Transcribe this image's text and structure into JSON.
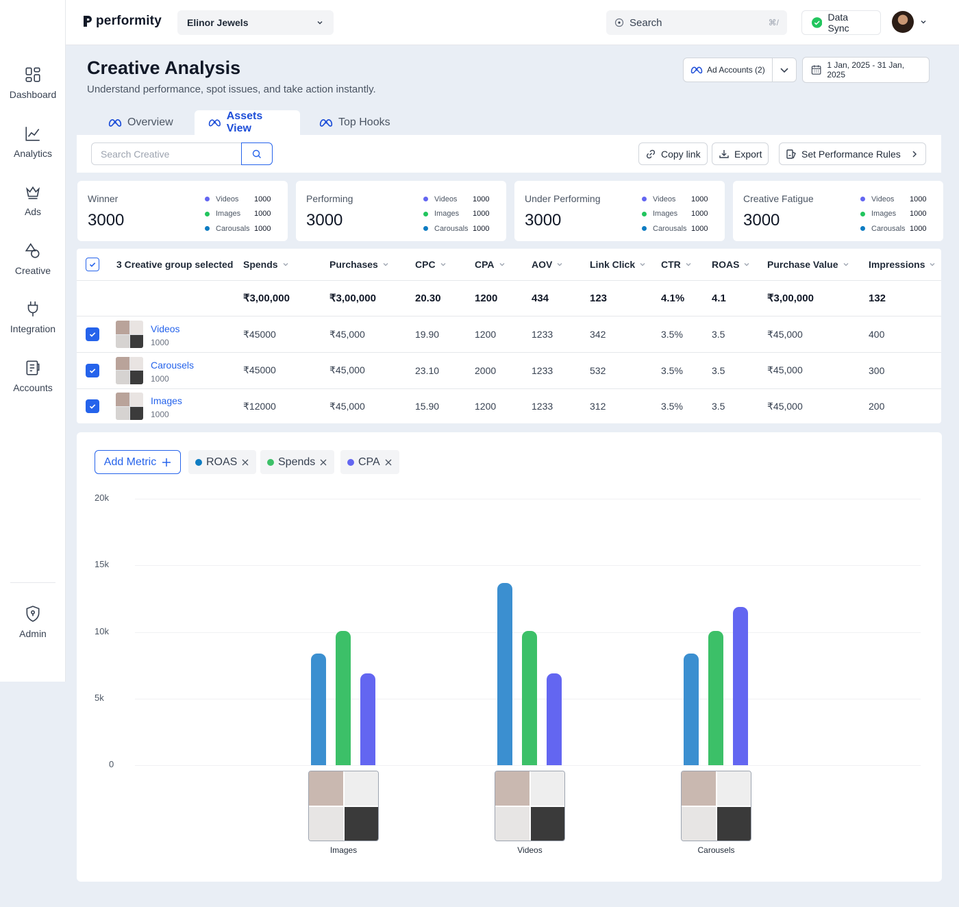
{
  "brand": {
    "logo_text": "performity"
  },
  "sidebar": {
    "items": [
      {
        "label": "Dashboard",
        "icon": "dashboard-icon"
      },
      {
        "label": "Analytics",
        "icon": "analytics-icon"
      },
      {
        "label": "Ads",
        "icon": "crown-icon"
      },
      {
        "label": "Creative",
        "icon": "shapes-icon"
      },
      {
        "label": "Integration",
        "icon": "plug-icon"
      },
      {
        "label": "Accounts",
        "icon": "accounts-icon"
      }
    ],
    "admin": {
      "label": "Admin",
      "icon": "shield-icon"
    }
  },
  "header": {
    "account_select": "Elinor Jewels",
    "search_placeholder": "Search",
    "search_shortcut": "⌘/",
    "sync_label": "Data Sync"
  },
  "page": {
    "title": "Creative Analysis",
    "subtitle": "Understand performance, spot issues, and take action instantly.",
    "ad_accounts": "Ad Accounts (2)",
    "date_range": "1 Jan, 2025 - 31 Jan, 2025"
  },
  "tabs": [
    {
      "label": "Overview",
      "active": false
    },
    {
      "label": "Assets View",
      "active": true
    },
    {
      "label": "Top Hooks",
      "active": false
    }
  ],
  "toolbar": {
    "search_placeholder": "Search Creative",
    "copy_link": "Copy link",
    "export": "Export",
    "rules": "Set Performance Rules"
  },
  "cards": [
    {
      "title": "Winner",
      "value": "3000",
      "breakdown": [
        {
          "name": "Videos",
          "value": "1000"
        },
        {
          "name": "Images",
          "value": "1000"
        },
        {
          "name": "Carousals",
          "value": "1000"
        }
      ]
    },
    {
      "title": "Performing",
      "value": "3000",
      "breakdown": [
        {
          "name": "Videos",
          "value": "1000"
        },
        {
          "name": "Images",
          "value": "1000"
        },
        {
          "name": "Carousals",
          "value": "1000"
        }
      ]
    },
    {
      "title": "Under Performing",
      "value": "3000",
      "breakdown": [
        {
          "name": "Videos",
          "value": "1000"
        },
        {
          "name": "Images",
          "value": "1000"
        },
        {
          "name": "Carousals",
          "value": "1000"
        }
      ]
    },
    {
      "title": "Creative Fatigue",
      "value": "3000",
      "breakdown": [
        {
          "name": "Videos",
          "value": "1000"
        },
        {
          "name": "Images",
          "value": "1000"
        },
        {
          "name": "Carousals",
          "value": "1000"
        }
      ]
    }
  ],
  "colors": {
    "videos": "#6366f1",
    "images": "#22c55e",
    "carousals": "#0e7cc2",
    "roas": "#3b8fd0",
    "spends": "#3cc068",
    "cpa": "#6366f1",
    "accent": "#2563eb"
  },
  "table": {
    "selection_label": "3 Creative group selected",
    "columns": [
      "Spends",
      "Purchases",
      "CPC",
      "CPA",
      "AOV",
      "Link Click",
      "CTR",
      "ROAS",
      "Purchase Value",
      "Impressions"
    ],
    "totals": [
      "₹3,00,000",
      "₹3,00,000",
      "20.30",
      "1200",
      "434",
      "123",
      "4.1%",
      "4.1",
      "₹3,00,000",
      "132"
    ],
    "rows": [
      {
        "name": "Videos",
        "count": "1000",
        "cells": [
          "₹45000",
          "₹45,000",
          "19.90",
          "1200",
          "1233",
          "342",
          "3.5%",
          "3.5",
          "₹45,000",
          "400"
        ]
      },
      {
        "name": "Carousels",
        "count": "1000",
        "cells": [
          "₹45000",
          "₹45,000",
          "23.10",
          "2000",
          "1233",
          "532",
          "3.5%",
          "3.5",
          "₹45,000",
          "300"
        ]
      },
      {
        "name": "Images",
        "count": "1000",
        "cells": [
          "₹12000",
          "₹45,000",
          "15.90",
          "1200",
          "1233",
          "312",
          "3.5%",
          "3.5",
          "₹45,000",
          "200"
        ]
      }
    ]
  },
  "chart_controls": {
    "add_metric": "Add Metric",
    "chips": [
      {
        "name": "ROAS",
        "color": "#0e7cc2"
      },
      {
        "name": "Spends",
        "color": "#3cc068"
      },
      {
        "name": "CPA",
        "color": "#6366f1"
      }
    ]
  },
  "chart_data": {
    "type": "bar",
    "categories": [
      "Images",
      "Videos",
      "Carousels"
    ],
    "series": [
      {
        "name": "ROAS",
        "color": "#3b8fd0",
        "values": [
          8400,
          13700,
          8400
        ]
      },
      {
        "name": "Spends",
        "color": "#3cc068",
        "values": [
          10100,
          10100,
          10100
        ]
      },
      {
        "name": "CPA",
        "color": "#6366f1",
        "values": [
          6900,
          6900,
          11900
        ]
      }
    ],
    "yticks": [
      "20k",
      "15k",
      "10k",
      "5k",
      "0"
    ],
    "ylim": [
      0,
      20000
    ],
    "grid": true
  }
}
